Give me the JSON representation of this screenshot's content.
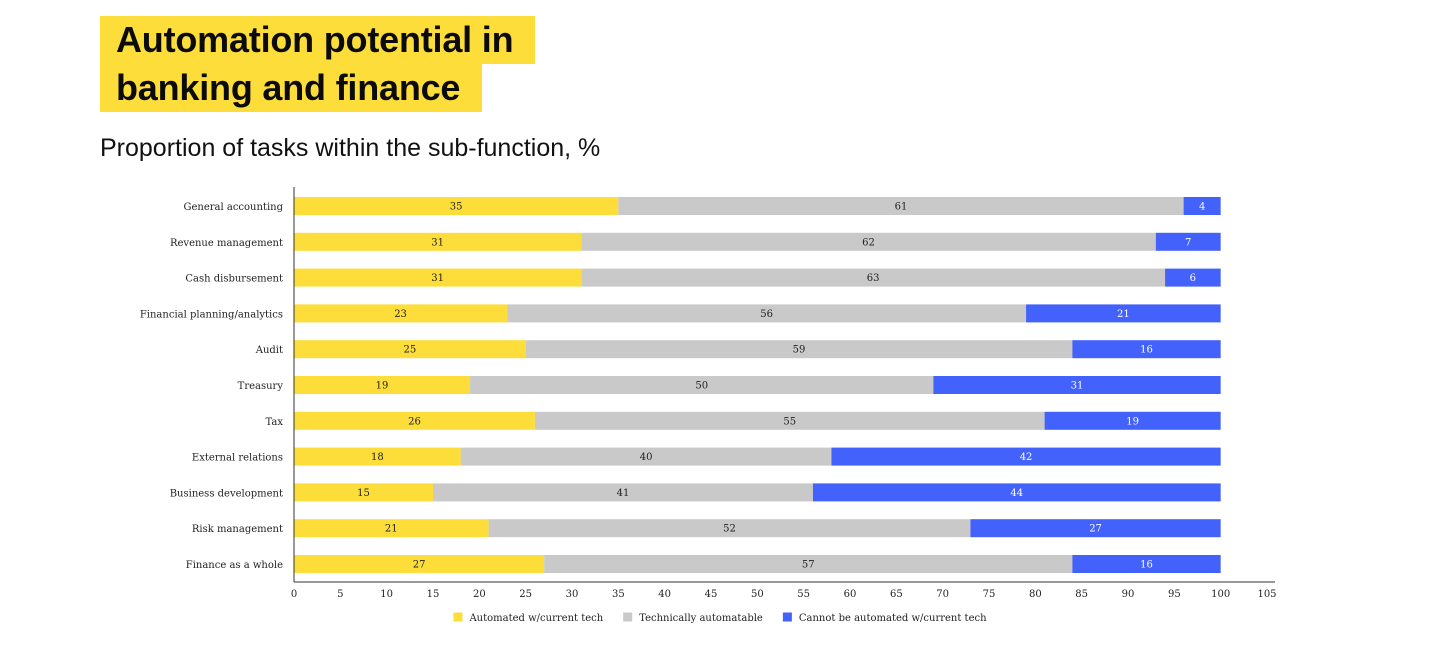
{
  "title": {
    "line1": "Automation potential in",
    "line2": "banking and finance"
  },
  "subtitle": "Proportion of tasks within the sub-function, %",
  "chart_data": {
    "type": "bar",
    "orientation": "horizontal",
    "stacked": true,
    "categories": [
      "General accounting",
      "Revenue management",
      "Cash disbursement",
      "Financial planning/analytics",
      "Audit",
      "Treasury",
      "Tax",
      "External relations",
      "Business development",
      "Risk management",
      "Finance as a whole"
    ],
    "series": [
      {
        "name": "Automated w/current tech",
        "color": "#fddd3a",
        "label_color": "#222222",
        "values": [
          35,
          31,
          31,
          23,
          25,
          19,
          26,
          18,
          15,
          21,
          27
        ]
      },
      {
        "name": "Technically automatable",
        "color": "#c9c9c9",
        "label_color": "#222222",
        "values": [
          61,
          62,
          63,
          56,
          59,
          50,
          55,
          40,
          41,
          52,
          57
        ]
      },
      {
        "name": "Cannot be automated w/current tech",
        "color": "#4361fb",
        "label_color": "#ffffff",
        "values": [
          4,
          7,
          6,
          21,
          16,
          31,
          19,
          42,
          44,
          27,
          16
        ]
      }
    ],
    "xlim": [
      0,
      105
    ],
    "xticks": [
      0,
      5,
      10,
      15,
      20,
      25,
      30,
      35,
      40,
      45,
      50,
      55,
      60,
      65,
      70,
      75,
      80,
      85,
      90,
      95,
      100,
      105
    ],
    "legend": "bottom-center",
    "grid": false
  }
}
